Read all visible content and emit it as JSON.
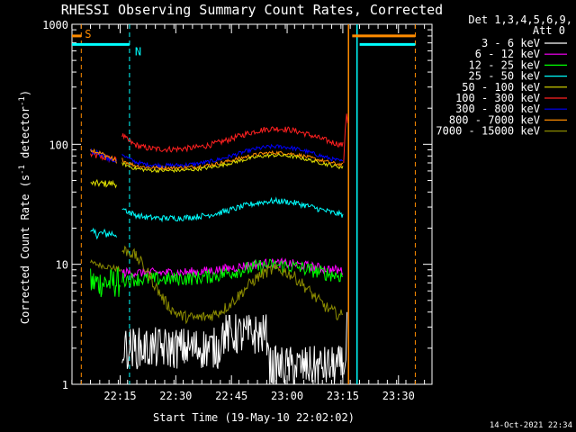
{
  "chart_data": {
    "type": "line",
    "title": "RHESSI Observing Summary Count Rates, Corrected",
    "xlabel": "Start Time (19-May-10 22:02:02)",
    "ylabel_main": "Corrected Count Rate (s",
    "ylabel_sup1": "-1",
    "ylabel_mid": " detector",
    "ylabel_sup2": "-1",
    "ylabel_end": ")",
    "y_scale": "log",
    "ylim": [
      1,
      1000
    ],
    "xlim_minutes": [
      0,
      97
    ],
    "x_ticks": [
      {
        "label": "22:15",
        "minute": 12.97
      },
      {
        "label": "22:30",
        "minute": 27.97
      },
      {
        "label": "22:45",
        "minute": 42.97
      },
      {
        "label": "23:00",
        "minute": 57.97
      },
      {
        "label": "23:15",
        "minute": 72.97
      },
      {
        "label": "23:30",
        "minute": 87.97
      }
    ],
    "y_ticks": [
      {
        "label": "1",
        "value": 1
      },
      {
        "label": "10",
        "value": 10
      },
      {
        "label": "100",
        "value": 100
      },
      {
        "label": "1000",
        "value": 1000
      }
    ],
    "legend_header": [
      "Det 1,3,4,5,6,9,",
      "Att 0"
    ],
    "legend_placement": "right",
    "series": [
      {
        "name": "3 - 6 keV",
        "color": "#ffffff"
      },
      {
        "name": "6 - 12 keV",
        "color": "#ff00ff"
      },
      {
        "name": "12 - 25 keV",
        "color": "#00ff00"
      },
      {
        "name": "25 - 50 keV",
        "color": "#00ffff"
      },
      {
        "name": "50 - 100 keV",
        "color": "#e0e000"
      },
      {
        "name": "100 - 300 keV",
        "color": "#ff2020"
      },
      {
        "name": "300 - 800 keV",
        "color": "#0000ff"
      },
      {
        "name": "800 - 7000 keV",
        "color": "#ff8c00"
      },
      {
        "name": "7000 - 15000 keV",
        "color": "#8b8b00"
      }
    ],
    "markers": [
      {
        "label": "S",
        "color": "#ff8c00",
        "start_minute": 0,
        "end_minute": 2.5,
        "level": 800
      },
      {
        "label": "N",
        "color": "#00ffff",
        "start_minute": 0,
        "end_minute": 15.5,
        "level": 680
      }
    ],
    "footer_date": "14-Oct-2021 22:34"
  }
}
